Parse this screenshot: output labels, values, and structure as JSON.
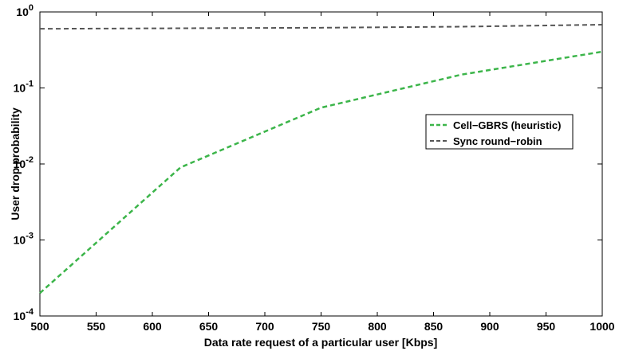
{
  "chart_data": {
    "type": "line",
    "title": "",
    "xlabel": "Data rate request of a particular user [Kbps]",
    "ylabel": "User drop probability",
    "xlim": [
      500,
      1000
    ],
    "ylim": [
      0.0001,
      1
    ],
    "yscale": "log",
    "grid": false,
    "legend_position": "right",
    "x_ticks": [
      "500",
      "550",
      "600",
      "650",
      "700",
      "750",
      "800",
      "850",
      "900",
      "950",
      "1000"
    ],
    "y_ticks": [
      {
        "base": "10",
        "exp": "0"
      },
      {
        "base": "10",
        "exp": "-1"
      },
      {
        "base": "10",
        "exp": "-2"
      },
      {
        "base": "10",
        "exp": "-3"
      },
      {
        "base": "10",
        "exp": "-4"
      }
    ],
    "series": [
      {
        "name": "Cell−GBRS (heuristic)",
        "color": "#3cb54a",
        "style": "dashed",
        "x": [
          500,
          625,
          750,
          875,
          1000
        ],
        "y": [
          0.0002,
          0.009,
          0.055,
          0.15,
          0.3
        ]
      },
      {
        "name": "Sync round−robin",
        "color": "#555555",
        "style": "dashed",
        "x": [
          500,
          625,
          750,
          875,
          1000
        ],
        "y": [
          0.6,
          0.61,
          0.62,
          0.64,
          0.68
        ]
      }
    ]
  }
}
